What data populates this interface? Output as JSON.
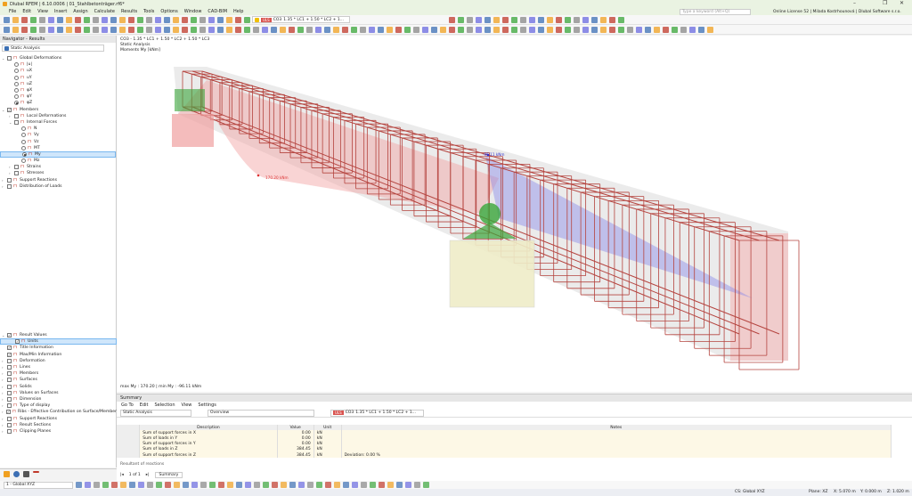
{
  "window": {
    "title": "Dlubal RFEM | 6.10.0006 | 01_Stahlbetonträger.rf6*",
    "minimize": "–",
    "restore": "❐",
    "close": "✕"
  },
  "menu": [
    "File",
    "Edit",
    "View",
    "Insert",
    "Assign",
    "Calculate",
    "Results",
    "Tools",
    "Options",
    "Window",
    "CAD-BIM",
    "Help"
  ],
  "search": {
    "placeholder": "Type a keyword (Alt+Q)"
  },
  "license": "Online License 52 | Milada Kostrhounová | Dlubal Software s.r.o.",
  "loadcase": {
    "badge": "ULS",
    "code": "CO3",
    "formula": "1.35 * LC1 + 1.50 * LC2 + 1..."
  },
  "navigator": {
    "title": "Navigator - Results",
    "analysis": "Static Analysis",
    "tree": [
      {
        "label": "Global Deformations",
        "level": 0,
        "type": "check",
        "expand": "v"
      },
      {
        "label": "|u|",
        "level": 1,
        "type": "radio"
      },
      {
        "label": "uX",
        "level": 1,
        "type": "radio"
      },
      {
        "label": "uY",
        "level": 1,
        "type": "radio"
      },
      {
        "label": "uZ",
        "level": 1,
        "type": "radio"
      },
      {
        "label": "φX",
        "level": 1,
        "type": "radio"
      },
      {
        "label": "φY",
        "level": 1,
        "type": "radio"
      },
      {
        "label": "φZ",
        "level": 1,
        "type": "radio",
        "on": true
      },
      {
        "label": "Members",
        "level": 0,
        "type": "check",
        "expand": "v",
        "checked": true
      },
      {
        "label": "Local Deformations",
        "level": 1,
        "type": "check",
        "expand": ">"
      },
      {
        "label": "Internal Forces",
        "level": 1,
        "type": "check",
        "expand": "v"
      },
      {
        "label": "N",
        "level": 2,
        "type": "radio"
      },
      {
        "label": "Vy",
        "level": 2,
        "type": "radio"
      },
      {
        "label": "Vz",
        "level": 2,
        "type": "radio"
      },
      {
        "label": "MT",
        "level": 2,
        "type": "radio"
      },
      {
        "label": "My",
        "level": 2,
        "type": "radio",
        "on": true,
        "selected": true
      },
      {
        "label": "Mz",
        "level": 2,
        "type": "radio"
      },
      {
        "label": "Strains",
        "level": 1,
        "type": "check",
        "expand": ">"
      },
      {
        "label": "Stresses",
        "level": 1,
        "type": "check",
        "expand": ">"
      },
      {
        "label": "Support Reactions",
        "level": 0,
        "type": "check",
        "expand": ">"
      },
      {
        "label": "Distribution of Loads",
        "level": 0,
        "type": "check",
        "expand": ">"
      }
    ],
    "display": [
      {
        "label": "Result Values",
        "level": 0,
        "expand": "v",
        "checked": true
      },
      {
        "label": "Units",
        "level": 1,
        "checked": true,
        "selected": true
      },
      {
        "label": "Title Information",
        "level": 0,
        "checked": true
      },
      {
        "label": "Max/Min Information",
        "level": 0,
        "checked": true
      },
      {
        "label": "Deformation",
        "level": 0,
        "expand": ">"
      },
      {
        "label": "Lines",
        "level": 0,
        "expand": ">"
      },
      {
        "label": "Members",
        "level": 0,
        "expand": ">"
      },
      {
        "label": "Surfaces",
        "level": 0,
        "expand": ">"
      },
      {
        "label": "Solids",
        "level": 0,
        "expand": ">"
      },
      {
        "label": "Values on Surfaces",
        "level": 0,
        "expand": ">"
      },
      {
        "label": "Dimension",
        "level": 0,
        "expand": ">"
      },
      {
        "label": "Type of display",
        "level": 0,
        "expand": ">"
      },
      {
        "label": "Ribs - Effective Contribution on Surface/Member",
        "level": 0,
        "expand": ">",
        "checked": true
      },
      {
        "label": "Support Reactions",
        "level": 0,
        "expand": ">"
      },
      {
        "label": "Result Sections",
        "level": 0,
        "expand": ">"
      },
      {
        "label": "Clipping Planes",
        "level": 0,
        "expand": ">"
      }
    ]
  },
  "viewport": {
    "line1": "CO3 - 1.35 * LC1 + 1.50 * LC2 + 1.50 * LC3",
    "line2": "Static Analysis",
    "line3": "Moments My [kNm]",
    "maxmin": "max My : 170.20 | min My : -96.11 kNm",
    "label_max": "170.20 kNm",
    "label_min": "-96.11 kNm",
    "colors": {
      "positive": "#e05a5a",
      "negative": "#6a6ae0",
      "rebar": "#b5443f",
      "support": "#3aa53a"
    }
  },
  "summary": {
    "title": "Summary",
    "menu": [
      "Go To",
      "Edit",
      "Selection",
      "View",
      "Settings"
    ],
    "analysis": "Static Analysis",
    "view": "Overview",
    "columns": [
      "Description",
      "Value",
      "Unit",
      "Notes"
    ],
    "rows": [
      {
        "desc": "Sum of support forces in X",
        "value": "0.00",
        "unit": "kN",
        "notes": ""
      },
      {
        "desc": "Sum of loads in Y",
        "value": "0.00",
        "unit": "kN",
        "notes": ""
      },
      {
        "desc": "Sum of support forces in Y",
        "value": "0.00",
        "unit": "kN",
        "notes": ""
      },
      {
        "desc": "Sum of loads in Z",
        "value": "384.45",
        "unit": "kN",
        "notes": ""
      },
      {
        "desc": "Sum of support forces in Z",
        "value": "384.45",
        "unit": "kN",
        "notes": "Deviation: 0.00 %"
      }
    ],
    "section_next": "Resultant of reactions",
    "pager": "1 of 1",
    "tab": "Summary"
  },
  "bottom": {
    "cs_select": "1 - Global XYZ"
  },
  "status": {
    "cs": "CS: Global XYZ",
    "plane": "Plane: XZ",
    "x": "X: 5.070 m",
    "y": "Y: 0.000 m",
    "z": "Z: 1.020 m"
  }
}
